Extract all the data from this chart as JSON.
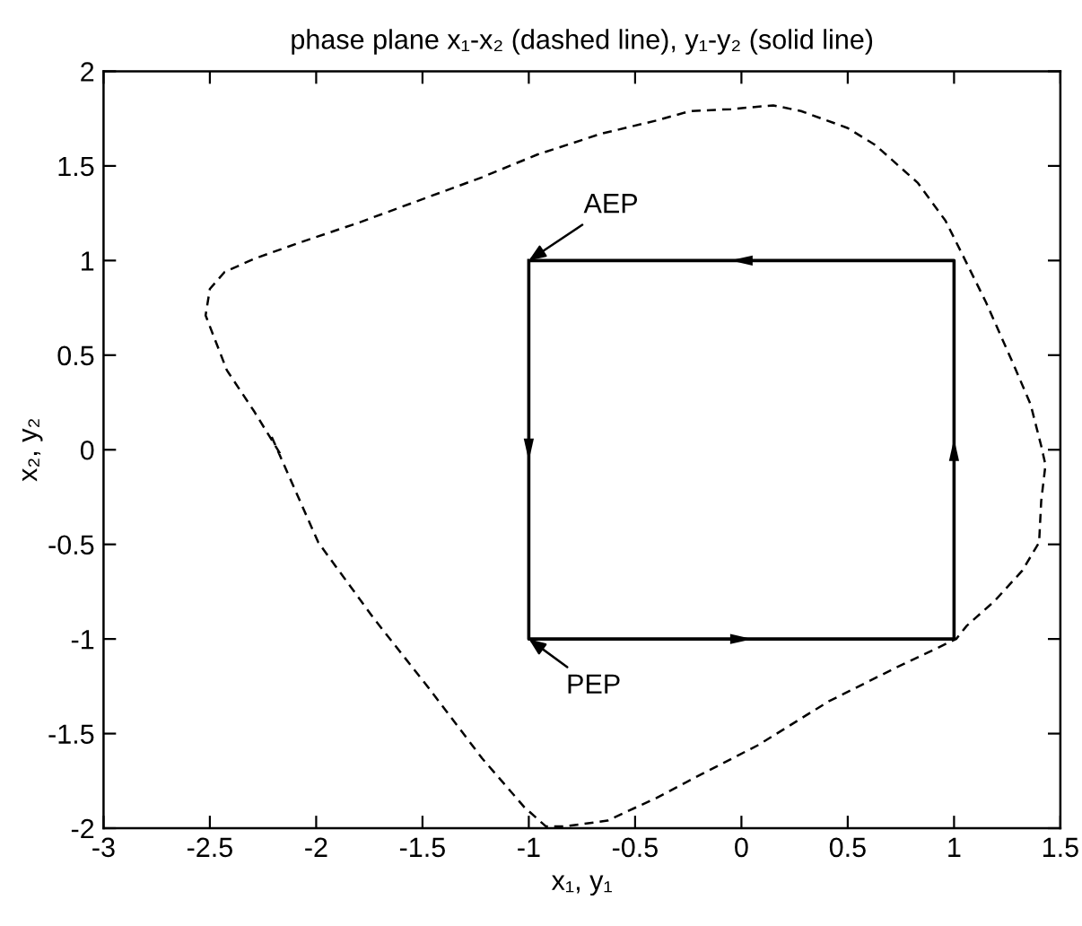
{
  "chart_data": {
    "type": "line",
    "title": "phase plane x₁-x₂ (dashed line), y₁-y₂ (solid line)",
    "xlabel": "x₁, y₁",
    "ylabel": "x₂, y₂",
    "xlim": [
      -3,
      1.5
    ],
    "ylim": [
      -2,
      2
    ],
    "xticks": [
      -3,
      -2.5,
      -2,
      -1.5,
      -1,
      -0.5,
      0,
      0.5,
      1,
      1.5
    ],
    "yticks": [
      -2,
      -1.5,
      -1,
      -0.5,
      0,
      0.5,
      1,
      1.5,
      2
    ],
    "series": [
      {
        "color": "#000000",
        "line_style": "dashed",
        "x": [
          -2.17,
          -2.29,
          -2.42,
          -2.52,
          -2.5,
          -2.43,
          -2.29,
          -2.09,
          -1.8,
          -1.51,
          -1.22,
          -0.96,
          -0.66,
          -0.4,
          -0.24,
          -0.05,
          0.15,
          0.28,
          0.5,
          0.63,
          0.83,
          0.96,
          1.04,
          1.15,
          1.28,
          1.36,
          1.41,
          1.43,
          1.41,
          1.4,
          1.32,
          1.19,
          1.06,
          1.01,
          0.73,
          0.41,
          0.08,
          -0.18,
          -0.4,
          -0.63,
          -0.83,
          -0.92,
          -1.02,
          -1.22,
          -1.47,
          -1.73,
          -1.99,
          -2.21
        ],
        "values": [
          -0.02,
          0.2,
          0.42,
          0.71,
          0.85,
          0.94,
          1.01,
          1.09,
          1.2,
          1.32,
          1.44,
          1.56,
          1.67,
          1.74,
          1.79,
          1.8,
          1.82,
          1.79,
          1.7,
          1.61,
          1.41,
          1.21,
          1.03,
          0.78,
          0.45,
          0.24,
          0.02,
          -0.08,
          -0.27,
          -0.49,
          -0.64,
          -0.8,
          -0.93,
          -1.0,
          -1.15,
          -1.33,
          -1.56,
          -1.71,
          -1.84,
          -1.96,
          -1.99,
          -1.99,
          -1.89,
          -1.63,
          -1.26,
          -0.89,
          -0.49,
          0.07
        ]
      },
      {
        "color": "#000000",
        "line_style": "solid",
        "x": [
          -1,
          -1,
          1,
          1,
          1,
          -1,
          -1
        ],
        "values": [
          1,
          -1,
          -1,
          0,
          1,
          1,
          0
        ]
      }
    ],
    "annotations": [
      {
        "text": "AEP",
        "x": -1,
        "y": 1
      },
      {
        "text": "PEP",
        "x": -1,
        "y": -1
      }
    ]
  }
}
